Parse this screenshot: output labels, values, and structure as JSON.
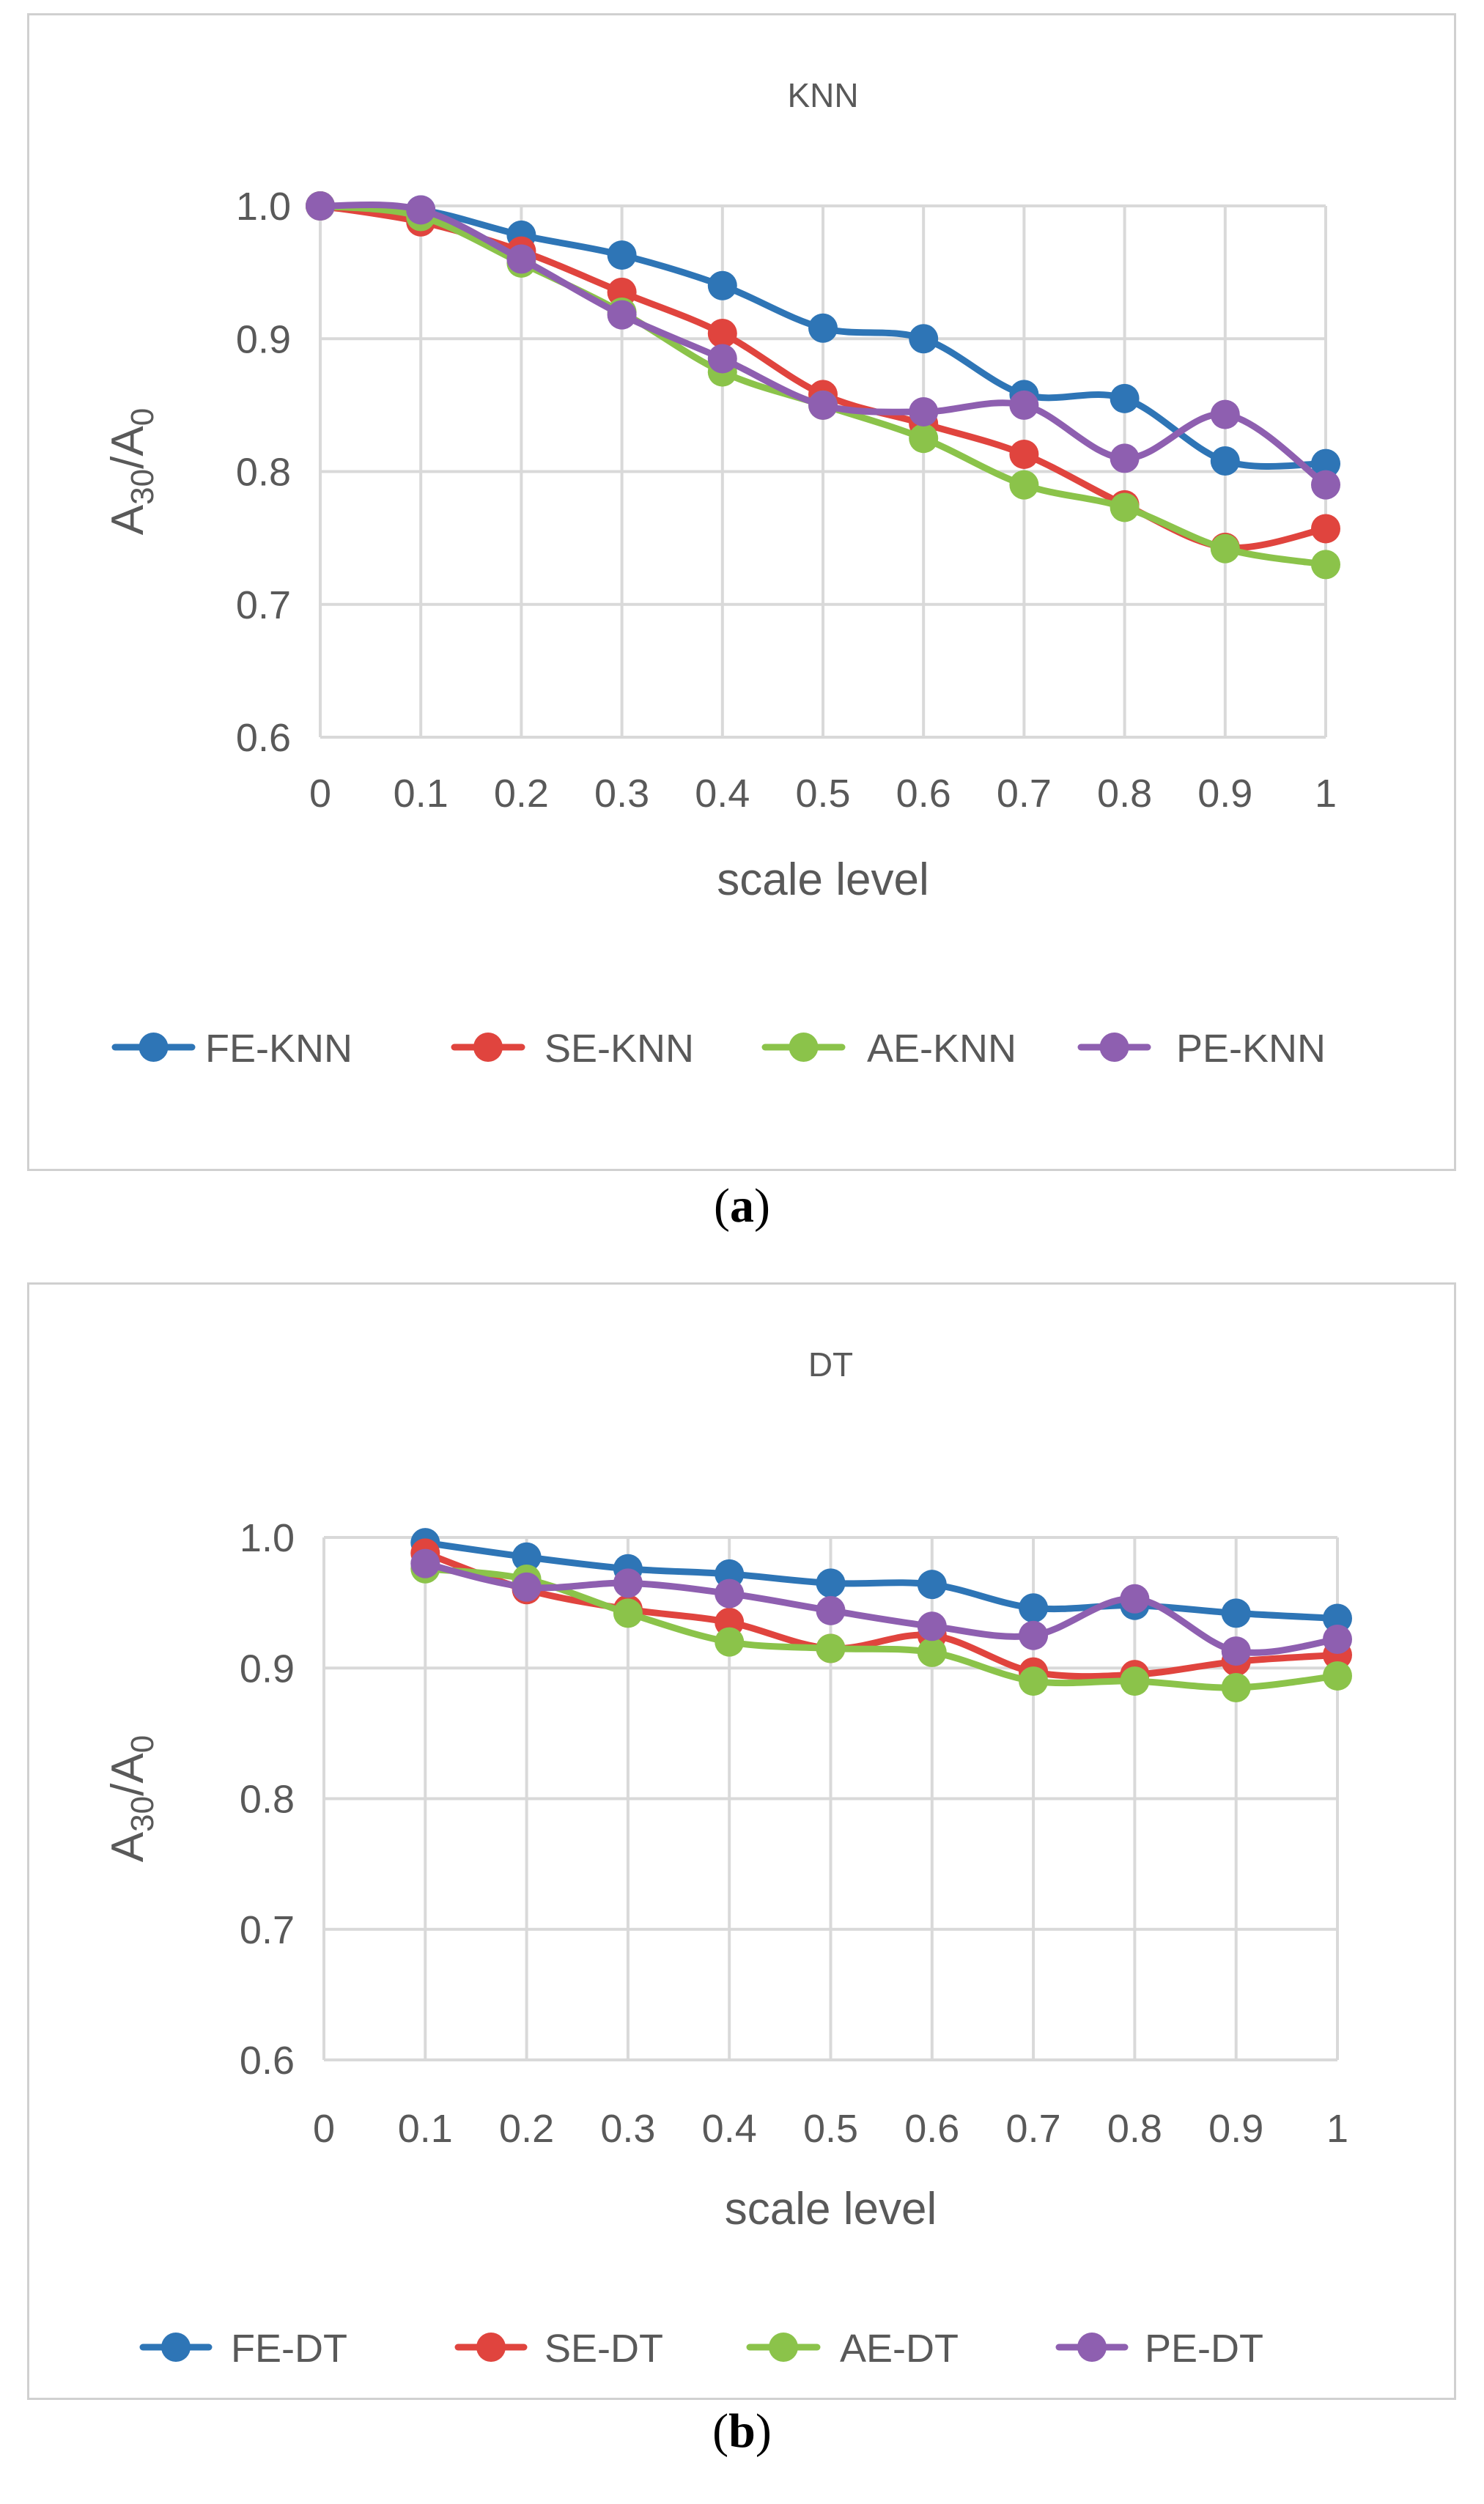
{
  "charts": [
    {
      "id": "a",
      "caption_letter": "a",
      "chart_data": {
        "type": "line",
        "title": "KNN",
        "xlabel": "scale level",
        "ylabel": "A30/A0",
        "ylabel_main": "A",
        "ylabel_sub1": "30",
        "ylabel_slash": "/A",
        "ylabel_sub2": "0",
        "categories": [
          "0",
          "0.1",
          "0.2",
          "0.3",
          "0.4",
          "0.5",
          "0.6",
          "0.7",
          "0.8",
          "0.9",
          "1"
        ],
        "y_ticks": [
          "0.6",
          "0.7",
          "0.8",
          "0.9",
          "1.0"
        ],
        "ylim": [
          0.6,
          1.0
        ],
        "grid": true,
        "legend_position": "bottom",
        "series": [
          {
            "name": "FE-KNN",
            "color": "#2e75b6",
            "values": [
              1.0,
              0.997,
              0.978,
              0.963,
              0.94,
              0.908,
              0.9,
              0.858,
              0.855,
              0.808,
              0.806
            ]
          },
          {
            "name": "SE-KNN",
            "color": "#e0443e",
            "values": [
              1.0,
              0.988,
              0.966,
              0.935,
              0.904,
              0.858,
              0.836,
              0.813,
              0.775,
              0.743,
              0.757
            ]
          },
          {
            "name": "AE-KNN",
            "color": "#8bc34a",
            "values": [
              1.0,
              0.992,
              0.957,
              0.92,
              0.875,
              0.85,
              0.825,
              0.79,
              0.773,
              0.742,
              0.73
            ]
          },
          {
            "name": "PE-KNN",
            "color": "#8e5fb0",
            "values": [
              1.0,
              0.997,
              0.96,
              0.918,
              0.885,
              0.85,
              0.845,
              0.85,
              0.81,
              0.843,
              0.79
            ]
          }
        ]
      }
    },
    {
      "id": "b",
      "caption_letter": "b",
      "chart_data": {
        "type": "line",
        "title": "DT",
        "xlabel": "scale level",
        "ylabel": "A30/A0",
        "ylabel_main": "A",
        "ylabel_sub1": "30",
        "ylabel_slash": "/A",
        "ylabel_sub2": "0",
        "categories": [
          "0",
          "0.1",
          "0.2",
          "0.3",
          "0.4",
          "0.5",
          "0.6",
          "0.7",
          "0.8",
          "0.9",
          "1"
        ],
        "y_ticks": [
          "0.6",
          "0.7",
          "0.8",
          "0.9",
          "1.0"
        ],
        "ylim": [
          0.6,
          1.0
        ],
        "grid": true,
        "legend_position": "bottom",
        "series": [
          {
            "name": "FE-DT",
            "color": "#2e75b6",
            "values": [
              null,
              0.996,
              0.985,
              0.976,
              0.972,
              0.965,
              0.964,
              0.946,
              0.948,
              0.942,
              0.938
            ]
          },
          {
            "name": "SE-DT",
            "color": "#e0443e",
            "values": [
              null,
              0.988,
              0.96,
              0.945,
              0.935,
              0.915,
              0.925,
              0.897,
              0.895,
              0.905,
              0.91
            ]
          },
          {
            "name": "AE-DT",
            "color": "#8bc34a",
            "values": [
              null,
              0.976,
              0.968,
              0.942,
              0.92,
              0.915,
              0.912,
              0.89,
              0.89,
              0.885,
              0.894
            ]
          },
          {
            "name": "PE-DT",
            "color": "#8e5fb0",
            "values": [
              null,
              0.98,
              0.962,
              0.965,
              0.957,
              0.944,
              0.932,
              0.925,
              0.953,
              0.913,
              0.922
            ]
          }
        ]
      }
    }
  ]
}
